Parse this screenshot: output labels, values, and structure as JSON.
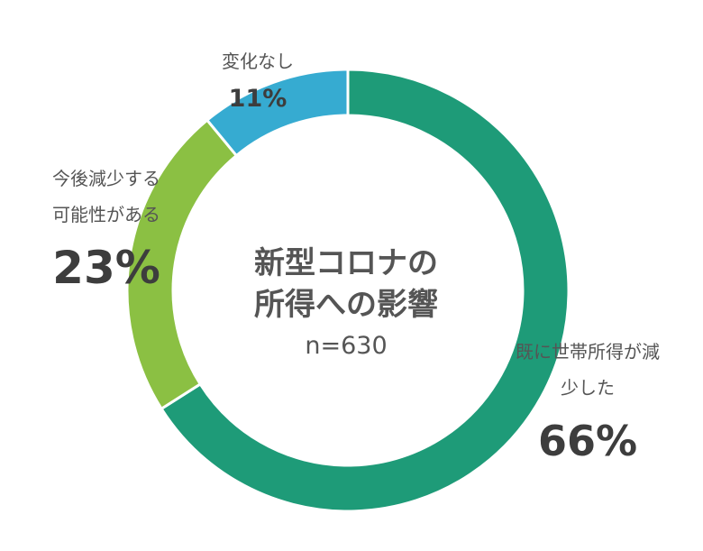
{
  "chart_data": {
    "type": "pie",
    "title_lines": [
      "新型コロナの",
      "所得への影響"
    ],
    "sample_size": "n=630",
    "categories": [
      "既に世帯所得が減少した",
      "今後減少する可能性がある",
      "変化なし"
    ],
    "values": [
      66,
      23,
      11
    ],
    "labels": [
      {
        "lines": [
          "既に世帯所得が減",
          "少した"
        ],
        "percent": "66%"
      },
      {
        "lines": [
          "今後減少する",
          "可能性がある"
        ],
        "percent": "23%"
      },
      {
        "lines": [
          "変化なし"
        ],
        "percent": "11%"
      }
    ],
    "colors": [
      "#1e9b78",
      "#8bc043",
      "#36abd1"
    ],
    "donut": true,
    "start_angle": "12 o'clock",
    "direction": "clockwise"
  }
}
